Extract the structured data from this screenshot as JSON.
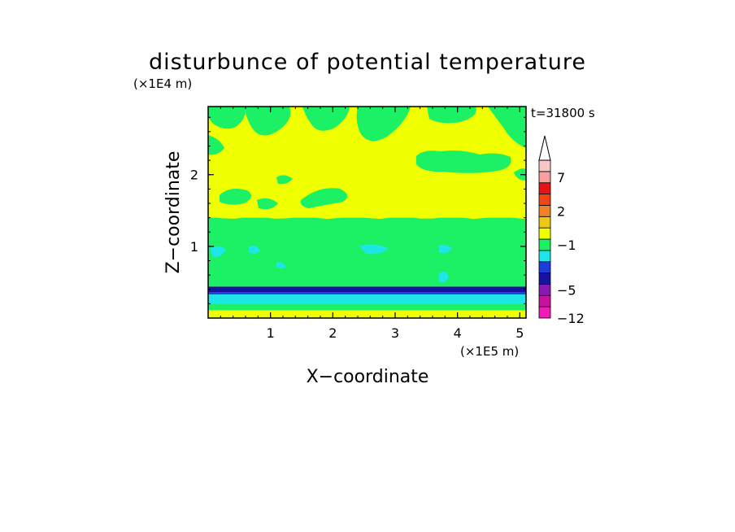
{
  "chart_data": {
    "type": "heatmap",
    "title": "disturbunce of potential temperature",
    "xlabel": "X−coordinate",
    "ylabel": "Z−coordinate",
    "x_unit": "(×1E5 m)",
    "y_unit": "(×1E4 m)",
    "time_label": "t=31800 s",
    "xlim": [
      0,
      5.1
    ],
    "ylim": [
      0,
      2.95
    ],
    "x_ticks": [
      "1",
      "2",
      "3",
      "4",
      "5"
    ],
    "x_tick_values": [
      1,
      2,
      3,
      4,
      5
    ],
    "y_ticks": [
      "1",
      "2"
    ],
    "y_tick_values": [
      1,
      2
    ],
    "colorbar": {
      "levels": [
        "-12",
        "-5",
        "-1",
        "2",
        "7"
      ],
      "colors": [
        "#f01cb4",
        "#c8129e",
        "#8c18b4",
        "#1414a0",
        "#1c3cdc",
        "#1ce6e6",
        "#1cf064",
        "#f0ff00",
        "#f0c814",
        "#f08228",
        "#f04614",
        "#e61414",
        "#f8a0a0",
        "#f8c8c8"
      ],
      "extend": "max"
    },
    "layers": [
      {
        "z_from": 0.0,
        "z_to": 0.11,
        "class": "0 to 1",
        "color": "#f0ff00"
      },
      {
        "z_from": 0.11,
        "z_to": 0.2,
        "class": "-1 to 0",
        "color": "#1cf064"
      },
      {
        "z_from": 0.2,
        "z_to": 0.33,
        "class": "-2 to -1",
        "color": "#1ce6e6"
      },
      {
        "z_from": 0.33,
        "z_to": 0.36,
        "class": "-3 to -2",
        "color": "#1c3cdc"
      },
      {
        "z_from": 0.36,
        "z_to": 0.44,
        "class": "-4 to -3",
        "color": "#1414a0"
      },
      {
        "z_from": 0.44,
        "z_to": 1.4,
        "class": "-1 to 0",
        "color": "#1cf064"
      },
      {
        "z_from": 1.4,
        "z_to": 2.95,
        "class": "0 to 1",
        "color": "#f0ff00"
      }
    ]
  }
}
